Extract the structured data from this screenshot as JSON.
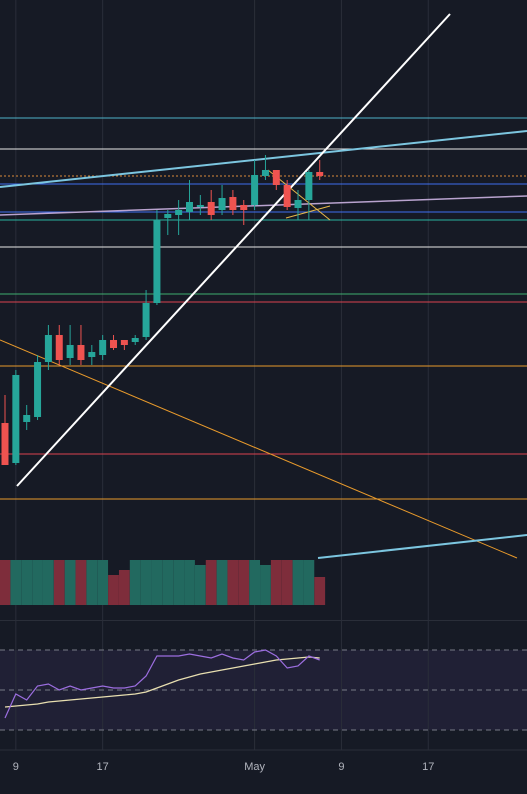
{
  "chart_data": {
    "type": "candlestick",
    "x": [
      0,
      1,
      2,
      3,
      4,
      5,
      6,
      7,
      8,
      9,
      10,
      11,
      12,
      13,
      14,
      15,
      16,
      17,
      18,
      19,
      20,
      21,
      22,
      23,
      24,
      25,
      26,
      27,
      28,
      29
    ],
    "open": [
      25.4,
      17.4,
      25.6,
      26.6,
      37.6,
      43,
      38.4,
      41,
      38.6,
      39,
      42,
      42,
      41.6,
      42.6,
      49.4,
      66.4,
      67,
      67.6,
      68.6,
      69.6,
      68,
      70.6,
      69,
      69,
      74.8,
      76,
      73,
      68.4,
      70,
      75.6
    ],
    "high": [
      31,
      36,
      29,
      39,
      45,
      45,
      45,
      45,
      41,
      43,
      43,
      42,
      43,
      52,
      68,
      68,
      70,
      74,
      71,
      72,
      73,
      72,
      70,
      78,
      79,
      76,
      74,
      72,
      76,
      78
    ],
    "low": [
      17,
      17,
      24,
      26,
      36,
      37,
      37,
      37,
      37,
      38,
      40,
      40,
      41,
      42,
      49,
      63,
      63,
      66,
      67,
      66,
      67,
      67,
      65,
      68,
      74,
      72,
      68,
      66,
      66,
      74
    ],
    "close": [
      17,
      35,
      27,
      37.6,
      43,
      38,
      41,
      38,
      39.6,
      42,
      40.4,
      41,
      42.4,
      49.4,
      66,
      67.2,
      68,
      69.6,
      69,
      67,
      70.4,
      68,
      68,
      75,
      76,
      73,
      68.6,
      70,
      75.6,
      74.8
    ],
    "volume": [
      45,
      45,
      45,
      45,
      45,
      45,
      45,
      45,
      45,
      45,
      30,
      35,
      45,
      45,
      45,
      45,
      45,
      45,
      40,
      45,
      45,
      45,
      45,
      45,
      40,
      45,
      45,
      45,
      45,
      28
    ],
    "rsi": [
      36,
      48,
      45,
      52,
      53,
      50,
      52,
      50,
      51,
      52,
      51,
      51,
      52,
      57,
      67,
      67,
      67,
      68,
      67,
      66,
      68,
      66,
      65,
      69,
      70,
      67,
      61,
      62,
      67,
      65
    ],
    "rsi_ma": [
      41.5,
      42,
      42.5,
      43,
      44,
      44.5,
      45,
      45.5,
      46,
      46.5,
      47,
      47.5,
      48,
      49,
      51,
      53,
      55,
      56.5,
      58,
      59,
      60,
      61,
      62,
      63,
      64,
      65,
      65.5,
      66,
      66.5,
      66
    ],
    "xlim": [
      -0.46,
      48.1
    ],
    "xticks": [
      {
        "value": 1,
        "label": "9"
      },
      {
        "value": 9,
        "label": "17"
      },
      {
        "value": 23,
        "label": "May"
      },
      {
        "value": 31,
        "label": "9"
      },
      {
        "value": 39,
        "label": "17"
      }
    ],
    "ylim": [
      0,
      110
    ],
    "volume_ylim": [
      0,
      50
    ],
    "rsi_ylim": [
      25,
      75
    ],
    "rsi_levels": [
      70,
      50,
      30
    ],
    "up_color": "#26a69a",
    "down_color": "#ef5350",
    "volume_up_color": "#22695f",
    "volume_down_color": "#7e2d3b",
    "rsi_color": "#9c6ee0",
    "rsi_ma_color": "#e8dfb0",
    "grid": true
  }
}
